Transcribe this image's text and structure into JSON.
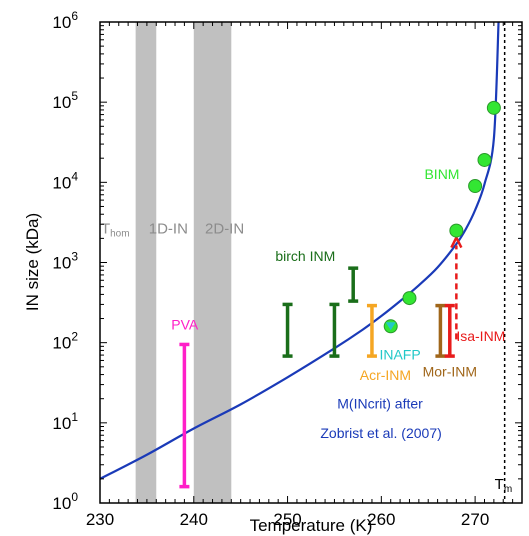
{
  "chart_data": {
    "type": "scatter",
    "xlabel": "Temperature (K)",
    "ylabel": "IN size (kDa)",
    "xlim": [
      230,
      275
    ],
    "ylim": [
      1,
      1000000
    ],
    "yscale": "log",
    "x_ticks": [
      "230",
      "240",
      "250",
      "260",
      "270"
    ],
    "x_tick_values": [
      230,
      240,
      250,
      260,
      270
    ],
    "y_ticks": [
      {
        "base": "10",
        "exp": "0",
        "value": 1
      },
      {
        "base": "10",
        "exp": "1",
        "value": 10
      },
      {
        "base": "10",
        "exp": "2",
        "value": 100
      },
      {
        "base": "10",
        "exp": "3",
        "value": 1000
      },
      {
        "base": "10",
        "exp": "4",
        "value": 10000
      },
      {
        "base": "10",
        "exp": "5",
        "value": 100000
      },
      {
        "base": "10",
        "exp": "6",
        "value": 1000000
      }
    ],
    "shaded_bands": [
      {
        "x0": 233.8,
        "x1": 236.0,
        "color": "#c0c0c0"
      },
      {
        "x0": 240.0,
        "x1": 244.0,
        "color": "#c0c0c0"
      }
    ],
    "band_labels": [
      {
        "text": "T",
        "sub": "hom",
        "x": 230.1,
        "y": 2300,
        "color": "#8c8c8c"
      },
      {
        "text": "1D-IN",
        "x": 235.2,
        "y": 2300,
        "color": "#8c8c8c"
      },
      {
        "text": "2D-IN",
        "x": 241.2,
        "y": 2300,
        "color": "#8c8c8c"
      }
    ],
    "melting_line": {
      "x": 273.15,
      "label": "T",
      "sub": "m"
    },
    "curve": {
      "name": "M(INcrit) after Zobrist et al. (2007)",
      "color": "#1a3ab8",
      "x": [
        230,
        235,
        240,
        245,
        250,
        255,
        258,
        260,
        262,
        264,
        266,
        268,
        269,
        270,
        271,
        272,
        272.5
      ],
      "y": [
        2.0,
        4.0,
        8.5,
        17,
        37,
        85,
        145,
        215,
        330,
        520,
        870,
        1700,
        2600,
        4500,
        9500,
        35000,
        1000000
      ]
    },
    "error_bars": [
      {
        "name": "PVA",
        "x": 239,
        "low": 1.6,
        "high": 95,
        "color": "#ff1fc8"
      },
      {
        "name": "birch INM",
        "x": 250,
        "low": 68,
        "high": 300,
        "color": "#1a6e1a"
      },
      {
        "name": "birch INM",
        "x": 255,
        "low": 68,
        "high": 300,
        "color": "#1a6e1a"
      },
      {
        "name": "birch INM",
        "x": 257,
        "low": 330,
        "high": 850,
        "color": "#1a6e1a"
      },
      {
        "name": "Acr-INM",
        "x": 259,
        "low": 68,
        "high": 290,
        "color": "#f5a623"
      },
      {
        "name": "Mor-INM",
        "x": 266.3,
        "low": 68,
        "high": 290,
        "color": "#a0661a"
      },
      {
        "name": "Isa-INM",
        "x": 267.3,
        "low": 68,
        "high": 290,
        "color": "#e81b1b"
      }
    ],
    "points": {
      "name": "BINM",
      "color": "#33e633",
      "x": [
        263,
        268,
        270,
        271,
        272
      ],
      "y": [
        360,
        2500,
        9000,
        19000,
        85000
      ]
    },
    "inafp_point": {
      "name": "INAFP",
      "x": 261,
      "y": 160,
      "color": "#22c8c8"
    },
    "arrow": {
      "x": 268,
      "from": 110,
      "to": 2050,
      "color": "#e81b1b"
    },
    "annotations": [
      {
        "text": "PVA",
        "x": 237.6,
        "y": 145,
        "color": "#ff1fc8"
      },
      {
        "text": "birch INM",
        "x": 248.7,
        "y": 1050,
        "color": "#1a6e1a"
      },
      {
        "text": "Acr-INM",
        "x": 257.7,
        "y": 34,
        "color": "#f5a623"
      },
      {
        "text": "INAFP",
        "x": 259.8,
        "y": 62,
        "color": "#22c8c8"
      },
      {
        "text": "Mor-INM",
        "x": 264.4,
        "y": 38,
        "color": "#a0661a"
      },
      {
        "text": "Isa-INM",
        "x": 268.0,
        "y": 105,
        "color": "#e81b1b"
      },
      {
        "text": "BINM",
        "x": 264.6,
        "y": 11000,
        "color": "#33e633"
      },
      {
        "text": "M(INcrit) after",
        "x": 255.3,
        "y": 15,
        "color": "#1a3ab8"
      },
      {
        "text": "Zobrist et al. (2007)",
        "x": 253.5,
        "y": 6.5,
        "color": "#1a3ab8"
      }
    ]
  }
}
